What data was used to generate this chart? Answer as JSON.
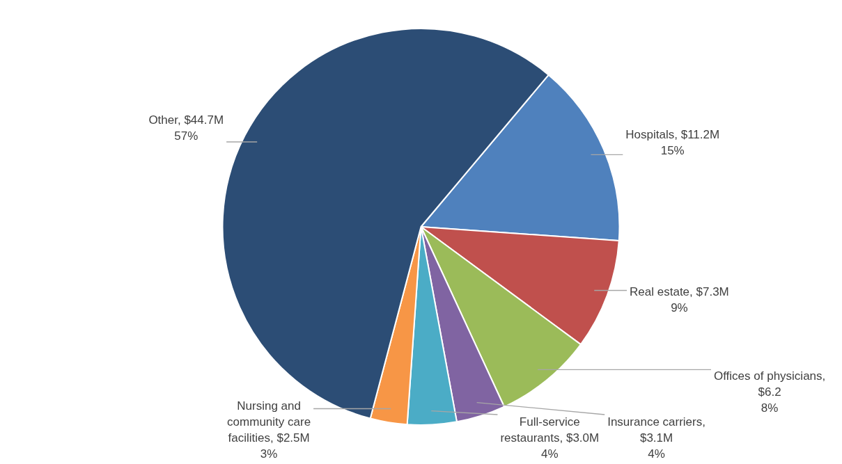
{
  "chart_data": {
    "type": "pie",
    "categories": [
      "Hospitals, $11.2M",
      "Real estate, $7.3M",
      "Offices of physicians, $6.2",
      "Insurance carriers, $3.1M",
      "Full-service restaurants, $3.0M",
      "Nursing and community care facilities, $2.5M",
      "Other, $44.7M"
    ],
    "values": [
      15,
      9,
      8,
      4,
      4,
      3,
      57
    ],
    "value_labels": [
      "15%",
      "9%",
      "8%",
      "4%",
      "4%",
      "3%",
      "57%"
    ],
    "colors": [
      "#4f81bd",
      "#c0504d",
      "#9bbb59",
      "#8064a2",
      "#4bacc6",
      "#f79646",
      "#2c4d75"
    ],
    "legend": false
  }
}
